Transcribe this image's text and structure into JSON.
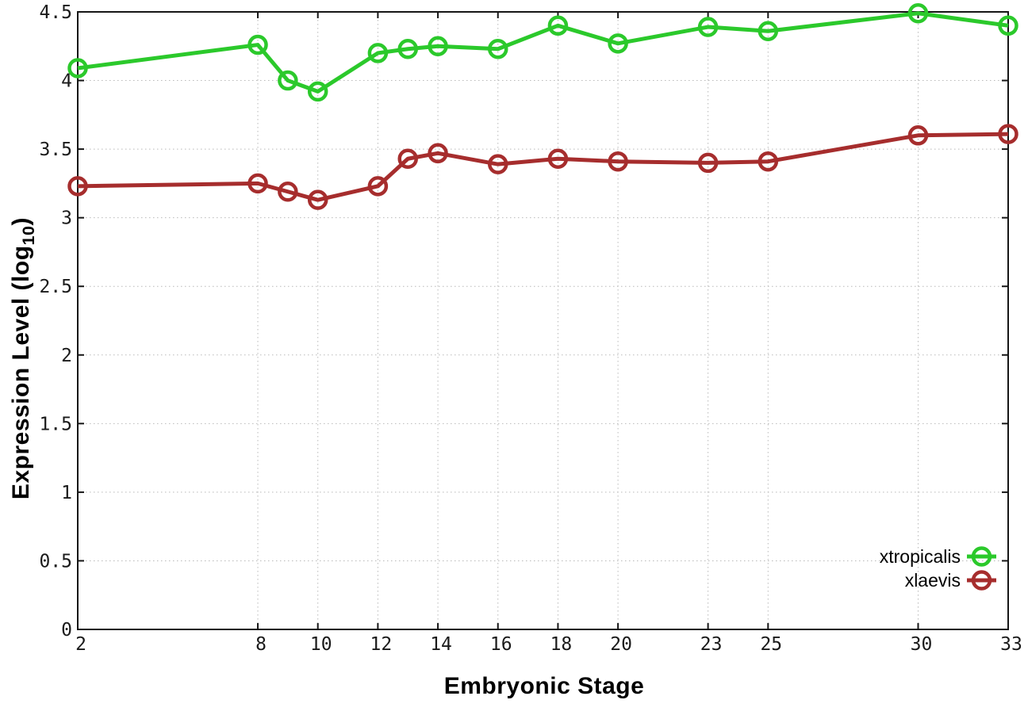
{
  "chart_data": {
    "type": "line",
    "title": "",
    "xlabel": "Embryonic Stage",
    "ylabel": "Expression Level (log10)",
    "ylabel_parts": {
      "main": "Expression Level (log",
      "sub": "10",
      "end": ")"
    },
    "xlim": [
      2,
      33
    ],
    "ylim": [
      0,
      4.5
    ],
    "grid": true,
    "legend_position": "bottom-right-inside",
    "marker": "open-circle",
    "x": [
      2,
      8,
      9,
      10,
      12,
      13,
      14,
      16,
      18,
      20,
      23,
      25,
      30,
      33
    ],
    "series": [
      {
        "name": "xtropicalis",
        "color": "#2bc92b",
        "values": [
          4.09,
          4.26,
          4.0,
          3.92,
          4.2,
          4.23,
          4.25,
          4.23,
          4.4,
          4.27,
          4.39,
          4.36,
          4.49,
          4.4
        ]
      },
      {
        "name": "xlaevis",
        "color": "#a62d2d",
        "values": [
          3.23,
          3.25,
          3.19,
          3.13,
          3.23,
          3.43,
          3.47,
          3.39,
          3.43,
          3.41,
          3.4,
          3.41,
          3.6,
          3.61
        ]
      }
    ],
    "xticks": [
      2,
      8,
      10,
      12,
      14,
      16,
      18,
      20,
      23,
      25,
      30,
      33
    ],
    "xtick_labels": [
      "2",
      "8",
      "10",
      "12",
      "14",
      "16",
      "18",
      "20",
      "23",
      "25",
      "30",
      "33"
    ],
    "yticks": [
      0,
      0.5,
      1,
      1.5,
      2,
      2.5,
      3,
      3.5,
      4,
      4.5
    ],
    "ytick_labels": [
      "0",
      "0.5",
      "1",
      "1.5",
      "2",
      "2.5",
      "3",
      "3.5",
      "4",
      "4.5"
    ]
  },
  "style": {
    "background_color": "#ffffff",
    "border_color": "#161616",
    "grid_color": "#b9b9b9",
    "tick_label_color": "#1a1a1a",
    "legend_text_color": "#000000"
  }
}
